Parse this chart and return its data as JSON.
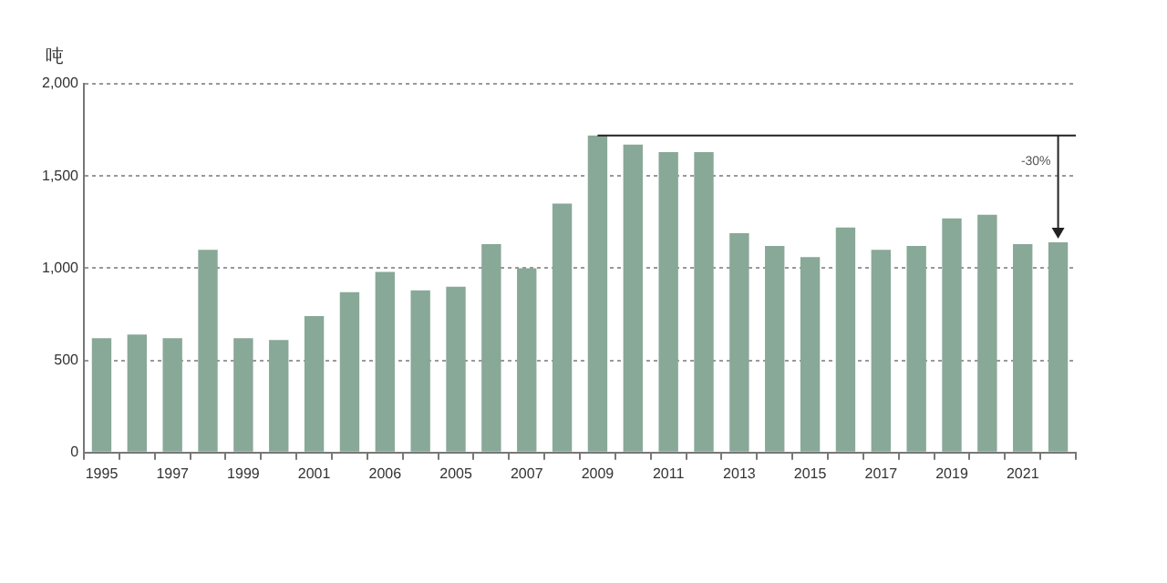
{
  "chart_data": {
    "type": "bar",
    "ylabel": "吨",
    "categories": [
      "1995",
      null,
      "1997",
      null,
      "1999",
      null,
      "2001",
      null,
      "2006",
      null,
      "2005",
      null,
      "2007",
      null,
      "2009",
      null,
      "2011",
      null,
      "2013",
      null,
      "2015",
      null,
      "2017",
      null,
      "2019",
      null,
      "2021",
      null
    ],
    "values": [
      620,
      640,
      620,
      1100,
      620,
      610,
      740,
      870,
      980,
      880,
      900,
      1130,
      1000,
      1350,
      1720,
      1670,
      1630,
      1630,
      1190,
      1120,
      1060,
      1220,
      1100,
      1120,
      1270,
      1290,
      1130,
      1140
    ],
    "color": "#88a898",
    "ylim": [
      0,
      2000
    ],
    "yticks": [
      {
        "value": 0,
        "label": "0"
      },
      {
        "value": 500,
        "label": "500"
      },
      {
        "value": 1000,
        "label": "1,000"
      },
      {
        "value": 1500,
        "label": "1,500"
      },
      {
        "value": 2000,
        "label": "2,000"
      }
    ],
    "grid": "y",
    "ref_lines": [
      {
        "axis": "y",
        "value": 1720,
        "color": "#222222"
      }
    ],
    "annotations": [
      "-30%"
    ]
  }
}
